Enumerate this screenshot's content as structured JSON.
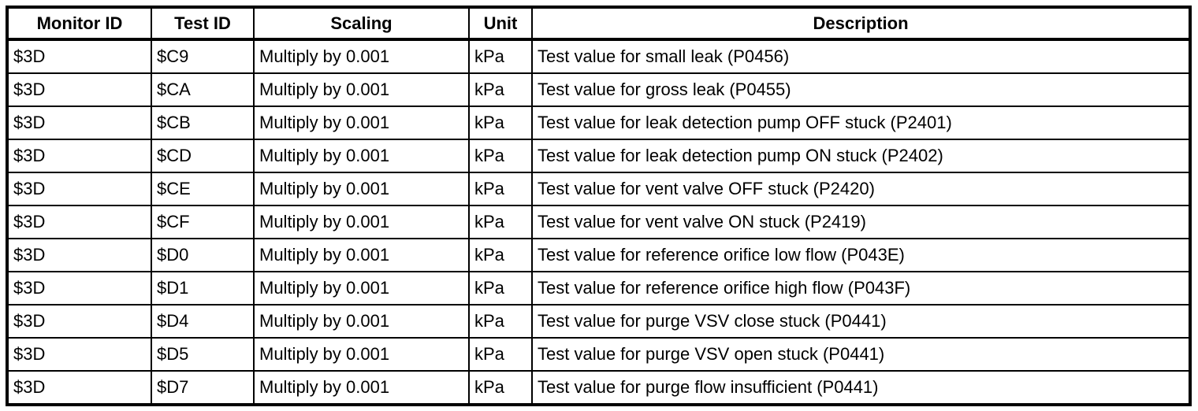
{
  "table": {
    "columns": [
      "Monitor ID",
      "Test ID",
      "Scaling",
      "Unit",
      "Description"
    ],
    "rows": [
      [
        "$3D",
        "$C9",
        "Multiply by 0.001",
        "kPa",
        "Test value for small leak (P0456)"
      ],
      [
        "$3D",
        "$CA",
        "Multiply by 0.001",
        "kPa",
        "Test value for gross leak (P0455)"
      ],
      [
        "$3D",
        "$CB",
        "Multiply by 0.001",
        "kPa",
        "Test value for leak detection pump OFF stuck (P2401)"
      ],
      [
        "$3D",
        "$CD",
        "Multiply by 0.001",
        "kPa",
        "Test value for leak detection pump ON stuck (P2402)"
      ],
      [
        "$3D",
        "$CE",
        "Multiply by 0.001",
        "kPa",
        "Test value for vent valve OFF stuck (P2420)"
      ],
      [
        "$3D",
        "$CF",
        "Multiply by 0.001",
        "kPa",
        "Test value for vent valve ON stuck (P2419)"
      ],
      [
        "$3D",
        "$D0",
        "Multiply by 0.001",
        "kPa",
        "Test value for reference orifice low flow (P043E)"
      ],
      [
        "$3D",
        "$D1",
        "Multiply by 0.001",
        "kPa",
        "Test value for reference orifice high flow (P043F)"
      ],
      [
        "$3D",
        "$D4",
        "Multiply by 0.001",
        "kPa",
        "Test value for purge VSV close stuck (P0441)"
      ],
      [
        "$3D",
        "$D5",
        "Multiply by 0.001",
        "kPa",
        "Test value for purge VSV open stuck (P0441)"
      ],
      [
        "$3D",
        "$D7",
        "Multiply by 0.001",
        "kPa",
        "Test value for purge flow insufficient (P0441)"
      ]
    ]
  }
}
